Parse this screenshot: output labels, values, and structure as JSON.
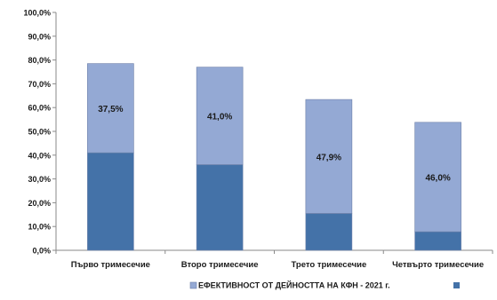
{
  "chart_data": {
    "type": "bar",
    "stacked": true,
    "categories": [
      "Първо тримесечие",
      "Второ тримесечие",
      "Трето тримесечие",
      "Четвърто тримесечие"
    ],
    "series": [
      {
        "name": "",
        "values": [
          41.0,
          36.0,
          15.5,
          7.8
        ],
        "color": "#4472a8"
      },
      {
        "name": "ЕФЕКТИВНОСТ ОТ ДЕЙНОСТТА НА КФН - 2021 г.",
        "values": [
          37.5,
          41.0,
          47.9,
          46.0
        ],
        "color": "#94a9d4"
      }
    ],
    "data_labels": [
      "37,5%",
      "41,0%",
      "47,9%",
      "46,0%"
    ],
    "y_ticks": [
      "0,0%",
      "10,0%",
      "20,0%",
      "30,0%",
      "40,0%",
      "50,0%",
      "60,0%",
      "70,0%",
      "80,0%",
      "90,0%",
      "100,0%"
    ],
    "ylim": [
      0,
      100
    ],
    "grid": false,
    "legend_position": "bottom"
  }
}
